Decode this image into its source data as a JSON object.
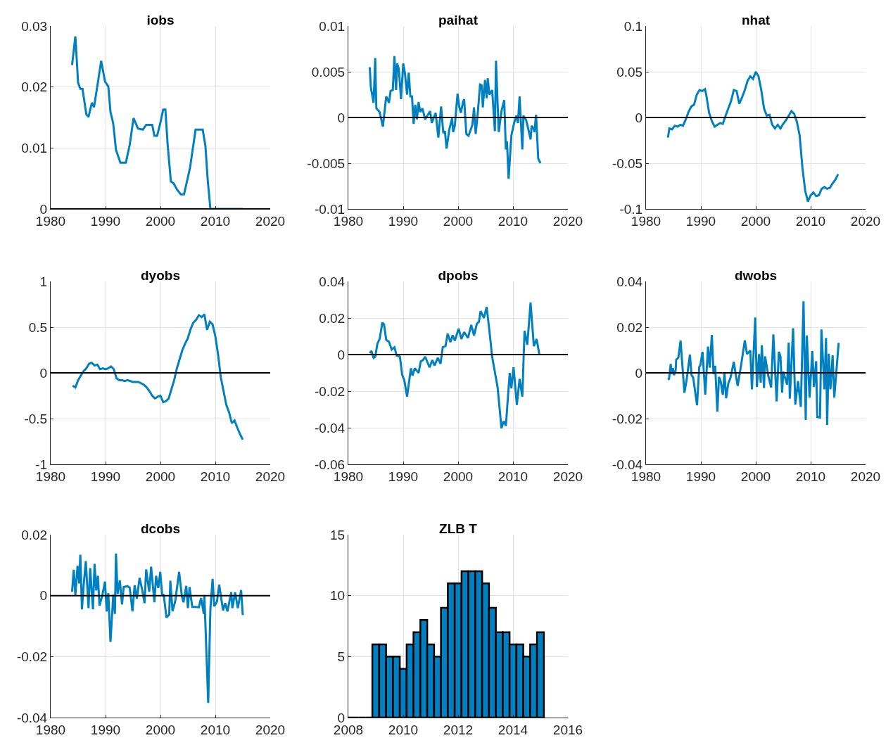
{
  "chart_data": [
    {
      "type": "line",
      "title": "iobs",
      "color": "#0080c0",
      "xlim": [
        1980,
        2020
      ],
      "xticks": [
        1980,
        1990,
        2000,
        2010,
        2020
      ],
      "ylim": [
        0,
        0.03
      ],
      "yticks": [
        0,
        0.01,
        0.02,
        0.03
      ],
      "grid": true,
      "ref_lines": [
        {
          "axis": "y",
          "value": 0,
          "color": "#000000"
        }
      ],
      "x": [
        1983.9,
        1984.5,
        1985.0,
        1985.4,
        1985.8,
        1986.5,
        1986.9,
        1987.5,
        1987.9,
        1988.6,
        1989.2,
        1989.9,
        1990.5,
        1990.9,
        1991.4,
        1991.9,
        1992.7,
        1993.7,
        1994.4,
        1995.1,
        1995.9,
        1996.8,
        1997.4,
        1998.5,
        1998.9,
        1999.4,
        2000.0,
        2000.5,
        2000.9,
        2001.3,
        2001.9,
        2002.4,
        2003.0,
        2003.7,
        2004.3,
        2005.4,
        2006.4,
        2007.7,
        2008.2,
        2008.6,
        2009.1,
        2015.0
      ],
      "values": [
        0.0236,
        0.0283,
        0.0207,
        0.0197,
        0.0197,
        0.0155,
        0.0151,
        0.0174,
        0.0167,
        0.0207,
        0.0243,
        0.0209,
        0.0201,
        0.0159,
        0.014,
        0.0097,
        0.0076,
        0.0076,
        0.0105,
        0.0149,
        0.0132,
        0.013,
        0.0138,
        0.0138,
        0.012,
        0.012,
        0.0142,
        0.0163,
        0.0163,
        0.0107,
        0.0045,
        0.0042,
        0.0032,
        0.0024,
        0.0024,
        0.0068,
        0.013,
        0.013,
        0.0103,
        0.0049,
        0,
        0
      ]
    },
    {
      "type": "line",
      "title": "paihat",
      "color": "#0080c0",
      "xlim": [
        1980,
        2020
      ],
      "xticks": [
        1980,
        1990,
        2000,
        2010,
        2020
      ],
      "ylim": [
        -0.01,
        0.01
      ],
      "yticks": [
        -0.01,
        -0.005,
        0,
        0.005,
        0.01
      ],
      "grid": true,
      "ref_lines": [
        {
          "axis": "y",
          "value": 0,
          "color": "#000000"
        }
      ],
      "x": [
        1983.9,
        1984.1,
        1984.6,
        1984.9,
        1985.1,
        1985.7,
        1986.3,
        1986.9,
        1987.4,
        1987.7,
        1988.1,
        1988.4,
        1988.7,
        1988.9,
        1989.2,
        1989.6,
        1990.0,
        1990.3,
        1990.7,
        1991.0,
        1991.3,
        1991.6,
        1991.9,
        1992.2,
        1992.5,
        1992.8,
        1993.1,
        1993.5,
        1994.0,
        1994.9,
        1995.2,
        1995.9,
        1996.4,
        1996.9,
        1997.3,
        1997.6,
        1997.9,
        1998.4,
        1998.9,
        1999.1,
        1999.4,
        1999.9,
        2000.2,
        2000.5,
        2000.9,
        2001.1,
        2001.5,
        2001.9,
        2002.6,
        2002.9,
        2003.2,
        2003.6,
        2004.0,
        2004.3,
        2004.5,
        2004.9,
        2005.2,
        2005.4,
        2005.7,
        2006.2,
        2006.7,
        2006.9,
        2007.4,
        2007.9,
        2008.4,
        2008.7,
        2008.9,
        2009.2,
        2009.7,
        2010.2,
        2010.6,
        2010.9,
        2011.2,
        2011.7,
        2011.9,
        2012.4,
        2012.8,
        2013.2,
        2013.4,
        2013.8,
        2013.9,
        2014.2,
        2014.6,
        2015.0
      ],
      "values": [
        0.0055,
        0.0033,
        0.0016,
        0.0065,
        0.001,
        0.0006,
        -0.001,
        0.0023,
        0.0016,
        0.0029,
        0.003,
        0.0067,
        0.003,
        0.0059,
        0.0053,
        0.002,
        0.0059,
        0.0049,
        0.0025,
        0.0049,
        0.0023,
        0.0023,
        -0.0007,
        0.0014,
        -0.0002,
        0.0017,
        0.0006,
        0.001,
        -0.0002,
        0.0007,
        -0.0006,
        0.0005,
        -0.0022,
        0.0012,
        -0.0017,
        -0.0015,
        -0.0034,
        -0.0013,
        -0.0001,
        -0.0016,
        -0.0009,
        0.0026,
        0.0012,
        0.0005,
        0.0017,
        0.002,
        -0.0018,
        -0.002,
        -0.0008,
        0.0011,
        -0.0018,
        0.0006,
        0.0036,
        0.0035,
        0.0011,
        0.0041,
        0.0021,
        0.0043,
        0.0025,
        0.003,
        -0.0015,
        0.0062,
        -0.0016,
        0.0007,
        0.0019,
        -0.0035,
        -0.0026,
        -0.0067,
        -0.002,
        -0.0006,
        0.0002,
        -0.0006,
        0.0023,
        -0.0035,
        0.0002,
        -0.0003,
        -0.0013,
        -0.0024,
        -0.0009,
        -0.0013,
        -0.0016,
        0.0003,
        -0.0045,
        -0.005
      ]
    },
    {
      "type": "line",
      "title": "nhat",
      "color": "#0080c0",
      "xlim": [
        1980,
        2020
      ],
      "xticks": [
        1980,
        1990,
        2000,
        2010,
        2020
      ],
      "ylim": [
        -0.1,
        0.1
      ],
      "yticks": [
        -0.1,
        -0.05,
        0,
        0.05,
        0.1
      ],
      "grid": true,
      "ref_lines": [
        {
          "axis": "y",
          "value": 0,
          "color": "#000000"
        }
      ],
      "x": [
        1984.0,
        1984.25,
        1984.75,
        1985.25,
        1985.75,
        1986.25,
        1986.75,
        1987.25,
        1987.75,
        1988.25,
        1988.75,
        1989.25,
        1989.75,
        1990.25,
        1990.75,
        1991.0,
        1991.5,
        1992.0,
        1992.5,
        1993.0,
        1993.5,
        1994.0,
        1994.5,
        1995.0,
        1995.5,
        1996.0,
        1996.5,
        1997.0,
        1997.5,
        1998.0,
        1998.5,
        1999.0,
        1999.5,
        2000.0,
        2000.5,
        2001.0,
        2001.5,
        2002.0,
        2002.5,
        2003.0,
        2003.5,
        2004.0,
        2004.5,
        2005.0,
        2005.5,
        2006.0,
        2006.5,
        2007.0,
        2007.5,
        2008.0,
        2008.5,
        2009.0,
        2009.5,
        2010.0,
        2010.5,
        2011.0,
        2011.5,
        2012.0,
        2012.5,
        2013.0,
        2013.5,
        2014.0,
        2014.5,
        2015.0
      ],
      "values": [
        -0.022,
        -0.012,
        -0.013,
        -0.009,
        -0.01,
        -0.008,
        -0.009,
        -0.002,
        0.006,
        0.012,
        0.014,
        0.025,
        0.03,
        0.029,
        0.031,
        0.024,
        0.005,
        -0.004,
        -0.01,
        -0.008,
        -0.006,
        -0.007,
        0.002,
        0.01,
        0.018,
        0.03,
        0.029,
        0.015,
        0.022,
        0.03,
        0.04,
        0.045,
        0.042,
        0.05,
        0.045,
        0.03,
        0.01,
        0.002,
        0.003,
        -0.008,
        -0.012,
        -0.008,
        -0.012,
        -0.007,
        -0.003,
        0.002,
        0.007,
        0.004,
        -0.005,
        -0.02,
        -0.055,
        -0.08,
        -0.092,
        -0.085,
        -0.082,
        -0.086,
        -0.085,
        -0.078,
        -0.076,
        -0.078,
        -0.077,
        -0.072,
        -0.068,
        -0.062
      ]
    },
    {
      "type": "line",
      "title": "dyobs",
      "color": "#0080c0",
      "xlim": [
        1980,
        2020
      ],
      "xticks": [
        1980,
        1990,
        2000,
        2010,
        2020
      ],
      "ylim": [
        -1,
        1
      ],
      "yticks": [
        -1,
        -0.5,
        0,
        0.5,
        1
      ],
      "grid": true,
      "ref_lines": [
        {
          "axis": "y",
          "value": 0,
          "color": "#000000"
        }
      ],
      "x": [
        1984,
        1984.5,
        1985,
        1985.5,
        1986,
        1986.5,
        1987,
        1987.5,
        1988,
        1988.5,
        1989,
        1989.5,
        1990,
        1990.5,
        1991,
        1991.5,
        1992,
        1992.5,
        1993,
        1993.5,
        1994,
        1995,
        1996,
        1997,
        1997.5,
        1998,
        1998.5,
        1999,
        1999.5,
        2000,
        2000.5,
        2001,
        2001.5,
        2002,
        2002.5,
        2003,
        2003.5,
        2004,
        2004.5,
        2005,
        2005.5,
        2006,
        2006.5,
        2007,
        2007.5,
        2008,
        2008.5,
        2009,
        2009.5,
        2010,
        2010.5,
        2011,
        2011.5,
        2012,
        2012.5,
        2013,
        2013.5,
        2014,
        2014.5,
        2015
      ],
      "values": [
        -0.14,
        -0.16,
        -0.08,
        -0.03,
        0.02,
        0.05,
        0.1,
        0.11,
        0.08,
        0.09,
        0.04,
        0.05,
        0.04,
        0.05,
        0.07,
        0.04,
        -0.06,
        -0.08,
        -0.08,
        -0.09,
        -0.08,
        -0.1,
        -0.1,
        -0.13,
        -0.16,
        -0.2,
        -0.25,
        -0.28,
        -0.26,
        -0.25,
        -0.32,
        -0.31,
        -0.28,
        -0.18,
        -0.08,
        0.05,
        0.15,
        0.25,
        0.32,
        0.38,
        0.48,
        0.55,
        0.58,
        0.63,
        0.61,
        0.64,
        0.47,
        0.56,
        0.53,
        0.4,
        0.2,
        -0.05,
        -0.2,
        -0.35,
        -0.43,
        -0.55,
        -0.52,
        -0.6,
        -0.67,
        -0.73
      ]
    },
    {
      "type": "line",
      "title": "dpobs",
      "color": "#0080c0",
      "xlim": [
        1980,
        2020
      ],
      "xticks": [
        1980,
        1990,
        2000,
        2010,
        2020
      ],
      "ylim": [
        -0.06,
        0.04
      ],
      "yticks": [
        -0.06,
        -0.04,
        -0.02,
        0,
        0.02,
        0.04
      ],
      "grid": true,
      "ref_lines": [
        {
          "axis": "y",
          "value": 0,
          "color": "#000000"
        }
      ],
      "x": [
        1983.9,
        1984.2,
        1984.6,
        1984.9,
        1985.3,
        1985.7,
        1986.2,
        1986.5,
        1986.9,
        1987.4,
        1987.9,
        1988.4,
        1988.8,
        1989.4,
        1989.8,
        1990.2,
        1990.7,
        1991.4,
        1991.7,
        1992.1,
        1992.8,
        1993.2,
        1993.6,
        1994.0,
        1994.8,
        1995.3,
        1995.7,
        1996.3,
        1996.8,
        1997.2,
        1997.7,
        1998.1,
        1998.6,
        1999.0,
        1999.4,
        2000.1,
        2000.6,
        2001.1,
        2001.8,
        2002.4,
        2002.9,
        2003.4,
        2003.8,
        2004.1,
        2004.7,
        2005.2,
        2005.7,
        2006.2,
        2007.2,
        2007.9,
        2008.3,
        2008.7,
        2009.4,
        2009.7,
        2010.1,
        2010.7,
        2011.2,
        2011.7,
        2012.1,
        2012.6,
        2013.2,
        2013.8,
        2014.3,
        2014.8
      ],
      "values": [
        0.0008,
        0.002,
        -0.0018,
        -0.0012,
        0.006,
        0.0085,
        0.0175,
        0.0165,
        0.008,
        0.007,
        0.0027,
        0.004,
        -0.0005,
        -0.0012,
        -0.011,
        -0.014,
        -0.023,
        -0.0075,
        -0.0115,
        -0.0075,
        -0.01,
        -0.0037,
        -0.003,
        -0.0012,
        -0.007,
        -0.003,
        -0.006,
        -0.0018,
        -0.005,
        0.004,
        0.0046,
        0.0114,
        0.0068,
        0.0106,
        0.0076,
        0.0142,
        0.0085,
        0.0123,
        0.0091,
        0.0162,
        0.0104,
        0.0167,
        0.018,
        0.0238,
        0.02,
        0.026,
        0.013,
        -0.0012,
        -0.018,
        -0.0403,
        -0.0364,
        -0.039,
        -0.01,
        -0.0185,
        -0.007,
        -0.0275,
        -0.0133,
        -0.023,
        0.013,
        0.0053,
        0.0284,
        0.0046,
        0.0085,
        0.0001
      ]
    },
    {
      "type": "line",
      "title": "dwobs",
      "color": "#0080c0",
      "xlim": [
        1980,
        2020
      ],
      "xticks": [
        1980,
        1990,
        2000,
        2010,
        2020
      ],
      "ylim": [
        -0.04,
        0.04
      ],
      "yticks": [
        -0.04,
        -0.02,
        0,
        0.02,
        0.04
      ],
      "grid": true,
      "ref_lines": [
        {
          "axis": "y",
          "value": 0,
          "color": "#000000"
        }
      ],
      "x": [
        1983.96,
        1984.2,
        1984.5,
        1984.7,
        1984.9,
        1985.1,
        1985.4,
        1985.5,
        1985.9,
        1986.3,
        1986.6,
        1987.0,
        1987.4,
        1988.0,
        1988.3,
        1988.6,
        1989.3,
        1989.7,
        1989.9,
        1990.3,
        1990.8,
        1991.3,
        1991.6,
        1992.0,
        1992.3,
        1992.6,
        1993.0,
        1993.3,
        1993.6,
        1994.0,
        1994.3,
        1994.6,
        1995.0,
        1995.4,
        1996.0,
        1996.3,
        1996.7,
        1997.3,
        1998.0,
        1998.4,
        1999.0,
        1999.3,
        1999.9,
        2000.2,
        2000.6,
        2000.9,
        2001.1,
        2001.5,
        2001.7,
        2002.3,
        2002.8,
        2003.2,
        2003.8,
        2004.2,
        2004.5,
        2004.8,
        2005.0,
        2005.7,
        2006.0,
        2006.2,
        2006.8,
        2007.2,
        2007.7,
        2008.2,
        2008.7,
        2009.1,
        2009.3,
        2009.8,
        2010.3,
        2010.6,
        2011.0,
        2011.2,
        2011.7,
        2011.96,
        2012.5,
        2012.8,
        2013.0,
        2013.3,
        2013.6,
        2014.0,
        2014.3,
        2015.1
      ],
      "values": [
        -0.0029,
        -0.0026,
        0.0039,
        -0.0005,
        0.0021,
        -0.001,
        0.001,
        0.0057,
        0.0067,
        0.0141,
        0.0041,
        -0.0087,
        -0.0031,
        0.008,
        -0.001,
        -0.0021,
        -0.0142,
        0.0026,
        0.0033,
        0.0092,
        -0.0095,
        0.0115,
        0.0023,
        0.0166,
        -0.0005,
        0.0031,
        -0.017,
        -0.0018,
        -0.0036,
        -0.0096,
        0,
        -0.0111,
        -0.0046,
        -0.0021,
        0.0048,
        0,
        -0.0057,
        0.0029,
        0.0142,
        0.0082,
        0.0098,
        -0.0072,
        0.0242,
        -0.0062,
        0.0082,
        -0.0043,
        0.0121,
        -0.0067,
        0.0072,
        -0.0015,
        -0.0064,
        0.0168,
        -0.0125,
        0.0092,
        0.0072,
        -0.0087,
        0.0005,
        -0.0051,
        0.0132,
        -0.0113,
        0.0195,
        -0.0139,
        -0.0036,
        -0.0149,
        0.0313,
        -0.0206,
        0.0164,
        -0.0108,
        0.0095,
        -0.0062,
        0.0051,
        -0.0193,
        -0.0195,
        0.019,
        -0.0072,
        0.0152,
        -0.0228,
        0.0084,
        -0.0072,
        0.0077,
        -0.0108,
        0.0131
      ]
    },
    {
      "type": "line",
      "title": "dcobs",
      "color": "#0080c0",
      "xlim": [
        1980,
        2020
      ],
      "xticks": [
        1980,
        1990,
        2000,
        2010,
        2020
      ],
      "ylim": [
        -0.04,
        0.02
      ],
      "yticks": [
        -0.04,
        -0.02,
        0,
        0.02
      ],
      "grid": true,
      "ref_lines": [
        {
          "axis": "y",
          "value": 0,
          "color": "#000000"
        }
      ],
      "x": [
        1983.9,
        1984.2,
        1984.5,
        1984.9,
        1985.2,
        1985.4,
        1985.7,
        1986.0,
        1986.4,
        1986.9,
        1987.2,
        1987.7,
        1988.0,
        1988.3,
        1988.6,
        1988.9,
        1989.4,
        1989.9,
        1990.2,
        1990.5,
        1990.9,
        1991.4,
        1991.7,
        1991.9,
        1992.2,
        1992.6,
        1993.0,
        1993.3,
        1994.0,
        1994.4,
        1994.9,
        1995.3,
        1995.7,
        1996.2,
        1996.7,
        1997.1,
        1997.4,
        1997.96,
        1998.3,
        1998.9,
        1999.2,
        1999.6,
        1999.96,
        2000.3,
        2000.6,
        2001.1,
        2001.6,
        2001.8,
        2002.2,
        2002.7,
        2003.4,
        2003.9,
        2004.2,
        2004.7,
        2005.0,
        2005.3,
        2005.8,
        2006.3,
        2007.0,
        2007.4,
        2007.9,
        2008.0,
        2008.7,
        2009.1,
        2009.5,
        2009.8,
        2010.3,
        2010.7,
        2011.4,
        2011.8,
        2012.2,
        2012.9,
        2013.1,
        2013.6,
        2014.1,
        2014.7,
        2015.0
      ],
      "values": [
        0.0013,
        0.0085,
        0.0002,
        0.0098,
        0.004,
        0.0134,
        -0.0045,
        0.0032,
        0.0113,
        -0.0041,
        0.009,
        -0.0045,
        0.0104,
        0.0017,
        0.0065,
        -0.0033,
        0,
        0.0046,
        -0.0052,
        0.0008,
        -0.0152,
        0.0003,
        -0.006,
        0.0138,
        0.0005,
        0.005,
        -0.0029,
        0.0028,
        0.0031,
        0.0026,
        -0.0052,
        0.0034,
        -0.001,
        0.0058,
        0.0017,
        -0.0025,
        0.0086,
        0.0013,
        0.0095,
        -0.0022,
        0.0065,
        0.0025,
        0.0078,
        0.0005,
        0.0002,
        -0.0072,
        -0.0062,
        0.0049,
        -0.0051,
        -0.0018,
        0.0078,
        -0.0002,
        -0.0022,
        0.0032,
        -0.0041,
        0.0028,
        -0.0037,
        -0.0037,
        -0.0038,
        -0.0008,
        -0.006,
        0.0002,
        -0.0352,
        -0.0045,
        0.0055,
        -0.0035,
        -0.002,
        0.0036,
        -0.0048,
        -0.0025,
        -0.0052,
        0.0011,
        -0.0041,
        0.0011,
        -0.0041,
        0.0018,
        -0.0064
      ]
    },
    {
      "type": "bar",
      "title": "ZLB T",
      "colors": [
        "#000000",
        "#000000",
        "#000000",
        "#000000",
        "#0080c0",
        "#0080c0",
        "#0080c0",
        "#0080c0",
        "#0080c0",
        "#0080c0",
        "#0080c0",
        "#0080c0",
        "#0080c0",
        "#0080c0",
        "#0080c0",
        "#0080c0",
        "#0080c0",
        "#0080c0",
        "#0080c0",
        "#0080c0",
        "#0080c0",
        "#0080c0",
        "#0080c0",
        "#0080c0",
        "#0080c0",
        "#0080c0",
        "#0080c0",
        "#0080c0",
        "#0080c0"
      ],
      "xlim": [
        2008,
        2016
      ],
      "xticks": [
        2008,
        2010,
        2012,
        2014,
        2016
      ],
      "ylim": [
        0,
        15
      ],
      "yticks": [
        0,
        5,
        10,
        15
      ],
      "grid": true,
      "x": [
        2008,
        2008.25,
        2008.5,
        2008.75,
        2009,
        2009.25,
        2009.5,
        2009.75,
        2010,
        2010.25,
        2010.5,
        2010.75,
        2011,
        2011.25,
        2011.5,
        2011.75,
        2012,
        2012.25,
        2012.5,
        2012.75,
        2013,
        2013.25,
        2013.5,
        2013.75,
        2014,
        2014.25,
        2014.5,
        2014.75,
        2015
      ],
      "values": [
        0,
        0,
        0,
        0,
        6,
        6,
        5,
        5,
        4,
        6,
        7,
        8,
        6,
        5,
        9,
        11,
        11,
        12,
        12,
        12,
        11,
        9,
        7,
        7,
        6,
        6,
        5,
        6,
        7
      ]
    }
  ]
}
